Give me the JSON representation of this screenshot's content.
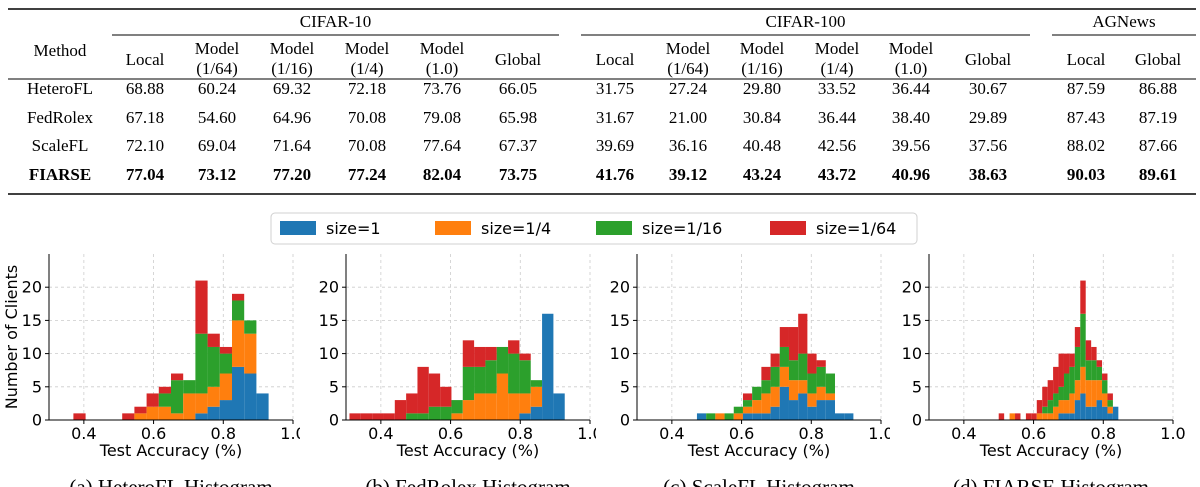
{
  "table": {
    "method_header": "Method",
    "groups": [
      "CIFAR-10",
      "CIFAR-100",
      "AGNews"
    ],
    "subheaders": [
      [
        "Local"
      ],
      [
        "Model",
        "(1/64)"
      ],
      [
        "Model",
        "(1/16)"
      ],
      [
        "Model",
        "(1/4)"
      ],
      [
        "Model",
        "(1.0)"
      ],
      [
        "Global"
      ],
      [
        "Local"
      ],
      [
        "Model",
        "(1/64)"
      ],
      [
        "Model",
        "(1/16)"
      ],
      [
        "Model",
        "(1/4)"
      ],
      [
        "Model",
        "(1.0)"
      ],
      [
        "Global"
      ],
      [
        "Local"
      ],
      [
        "Global"
      ]
    ],
    "rows": [
      {
        "method": "HeteroFL",
        "bold": false,
        "values": [
          "68.88",
          "60.24",
          "69.32",
          "72.18",
          "73.76",
          "66.05",
          "31.75",
          "27.24",
          "29.80",
          "33.52",
          "36.44",
          "30.67",
          "87.59",
          "86.88"
        ]
      },
      {
        "method": "FedRolex",
        "bold": false,
        "values": [
          "67.18",
          "54.60",
          "64.96",
          "70.08",
          "79.08",
          "65.98",
          "31.67",
          "21.00",
          "30.84",
          "36.44",
          "38.40",
          "29.89",
          "87.43",
          "87.19"
        ]
      },
      {
        "method": "ScaleFL",
        "bold": false,
        "values": [
          "72.10",
          "69.04",
          "71.64",
          "70.08",
          "77.64",
          "67.37",
          "39.69",
          "36.16",
          "40.48",
          "42.56",
          "39.56",
          "37.56",
          "88.02",
          "87.66"
        ]
      },
      {
        "method": "FIARSE",
        "bold": true,
        "values": [
          "77.04",
          "73.12",
          "77.20",
          "77.24",
          "82.04",
          "73.75",
          "41.76",
          "39.12",
          "43.24",
          "43.72",
          "40.96",
          "38.63",
          "90.03",
          "89.61"
        ]
      }
    ]
  },
  "legend": [
    {
      "label": "size=1",
      "color": "#1f77b4"
    },
    {
      "label": "size=1/4",
      "color": "#ff7f0e"
    },
    {
      "label": "size=1/16",
      "color": "#2ca02c"
    },
    {
      "label": "size=1/64",
      "color": "#d62728"
    }
  ],
  "chart_data": [
    {
      "type": "bar",
      "title": "",
      "caption": "(a) HeteroFL Histogram",
      "xlabel": "Test Accuracy (%)",
      "ylabel": "Number of Clients",
      "xlim": [
        0.3,
        1.0
      ],
      "ylim": [
        0,
        25
      ],
      "xticks": [
        "0.4",
        "0.6",
        "0.8",
        "1.0"
      ],
      "yticks": [
        "0",
        "5",
        "10",
        "15",
        "20"
      ],
      "bin_width": 0.035,
      "bins": [
        {
          "x0": 0.37,
          "values": [
            0,
            0,
            0,
            1
          ]
        },
        {
          "x0": 0.51,
          "values": [
            0,
            0,
            0,
            1
          ]
        },
        {
          "x0": 0.545,
          "values": [
            0,
            1,
            0,
            1
          ]
        },
        {
          "x0": 0.58,
          "values": [
            0,
            2,
            0,
            2
          ]
        },
        {
          "x0": 0.615,
          "values": [
            0,
            2,
            2,
            1
          ]
        },
        {
          "x0": 0.65,
          "values": [
            0,
            1,
            5,
            1
          ]
        },
        {
          "x0": 0.685,
          "values": [
            0,
            4,
            2,
            0
          ]
        },
        {
          "x0": 0.72,
          "values": [
            1,
            3,
            9,
            8
          ]
        },
        {
          "x0": 0.755,
          "values": [
            2,
            3,
            6,
            2
          ]
        },
        {
          "x0": 0.79,
          "values": [
            3,
            4,
            3,
            1
          ]
        },
        {
          "x0": 0.825,
          "values": [
            8,
            7,
            3,
            1
          ]
        },
        {
          "x0": 0.86,
          "values": [
            7,
            6,
            2,
            0
          ]
        },
        {
          "x0": 0.895,
          "values": [
            4,
            0,
            0,
            0
          ]
        }
      ]
    },
    {
      "type": "bar",
      "title": "",
      "caption": "(b) FedRolex Histogram",
      "xlabel": "Test Accuracy (%)",
      "ylabel": "",
      "xlim": [
        0.3,
        1.0
      ],
      "ylim": [
        0,
        25
      ],
      "xticks": [
        "0.4",
        "0.6",
        "0.8",
        "1.0"
      ],
      "yticks": [
        "0",
        "5",
        "10",
        "15",
        "20"
      ],
      "bin_width": 0.0325,
      "bins": [
        {
          "x0": 0.31,
          "values": [
            0,
            0,
            0,
            1
          ]
        },
        {
          "x0": 0.3425,
          "values": [
            0,
            0,
            0,
            1
          ]
        },
        {
          "x0": 0.375,
          "values": [
            0,
            0,
            0,
            1
          ]
        },
        {
          "x0": 0.4075,
          "values": [
            0,
            0,
            0,
            1
          ]
        },
        {
          "x0": 0.44,
          "values": [
            0,
            0,
            0,
            3
          ]
        },
        {
          "x0": 0.4725,
          "values": [
            0,
            0,
            1,
            3
          ]
        },
        {
          "x0": 0.505,
          "values": [
            0,
            0,
            1,
            7
          ]
        },
        {
          "x0": 0.5375,
          "values": [
            0,
            0,
            2,
            5
          ]
        },
        {
          "x0": 0.57,
          "values": [
            0,
            0,
            2,
            3
          ]
        },
        {
          "x0": 0.6025,
          "values": [
            0,
            1,
            2,
            0
          ]
        },
        {
          "x0": 0.635,
          "values": [
            0,
            3,
            5,
            4
          ]
        },
        {
          "x0": 0.6675,
          "values": [
            0,
            4,
            4,
            3
          ]
        },
        {
          "x0": 0.7,
          "values": [
            0,
            4,
            5,
            2
          ]
        },
        {
          "x0": 0.7325,
          "values": [
            0,
            7,
            4,
            0
          ]
        },
        {
          "x0": 0.765,
          "values": [
            0,
            4,
            6,
            2
          ]
        },
        {
          "x0": 0.7975,
          "values": [
            1,
            3,
            5,
            1
          ]
        },
        {
          "x0": 0.83,
          "values": [
            2,
            3,
            1,
            0
          ]
        },
        {
          "x0": 0.8625,
          "values": [
            16,
            0,
            0,
            0
          ]
        },
        {
          "x0": 0.895,
          "values": [
            4,
            0,
            0,
            0
          ]
        }
      ]
    },
    {
      "type": "bar",
      "title": "",
      "caption": "(c) ScaleFL Histogram",
      "xlabel": "Test Accuracy (%)",
      "ylabel": "",
      "xlim": [
        0.3,
        1.0
      ],
      "ylim": [
        0,
        25
      ],
      "xticks": [
        "0.4",
        "0.6",
        "0.8",
        "1.0"
      ],
      "yticks": [
        "0",
        "5",
        "10",
        "15",
        "20"
      ],
      "bin_width": 0.0264,
      "bins": [
        {
          "x0": 0.472,
          "values": [
            1,
            0,
            0,
            0
          ]
        },
        {
          "x0": 0.4984,
          "values": [
            0,
            0,
            1,
            0
          ]
        },
        {
          "x0": 0.5248,
          "values": [
            0,
            1,
            0,
            0
          ]
        },
        {
          "x0": 0.5512,
          "values": [
            0,
            0,
            1,
            0
          ]
        },
        {
          "x0": 0.5776,
          "values": [
            0,
            1,
            1,
            0
          ]
        },
        {
          "x0": 0.604,
          "values": [
            1,
            1,
            1,
            1
          ]
        },
        {
          "x0": 0.6304,
          "values": [
            1,
            2,
            2,
            0
          ]
        },
        {
          "x0": 0.6568,
          "values": [
            1,
            3,
            2,
            2
          ]
        },
        {
          "x0": 0.6832,
          "values": [
            2,
            3,
            3,
            2
          ]
        },
        {
          "x0": 0.7096,
          "values": [
            5,
            3,
            3,
            3
          ]
        },
        {
          "x0": 0.736,
          "values": [
            3,
            3,
            3,
            5
          ]
        },
        {
          "x0": 0.7624,
          "values": [
            4,
            2,
            4,
            6
          ]
        },
        {
          "x0": 0.7888,
          "values": [
            2,
            2,
            3,
            3
          ]
        },
        {
          "x0": 0.8152,
          "values": [
            3,
            2,
            3,
            1
          ]
        },
        {
          "x0": 0.8416,
          "values": [
            3,
            1,
            3,
            0
          ]
        },
        {
          "x0": 0.868,
          "values": [
            1,
            0,
            0,
            0
          ]
        },
        {
          "x0": 0.8944,
          "values": [
            1,
            0,
            0,
            0
          ]
        }
      ]
    },
    {
      "type": "bar",
      "title": "",
      "caption": "(d) FIARSE Histogram",
      "xlabel": "Test Accuracy (%)",
      "ylabel": "",
      "xlim": [
        0.3,
        1.0
      ],
      "ylim": [
        0,
        25
      ],
      "xticks": [
        "0.4",
        "0.6",
        "0.8",
        "1.0"
      ],
      "yticks": [
        "0",
        "5",
        "10",
        "15",
        "20"
      ],
      "bin_width": 0.0156,
      "bins": [
        {
          "x0": 0.5,
          "values": [
            0,
            0,
            0,
            1
          ]
        },
        {
          "x0": 0.5156,
          "values": [
            0,
            0,
            0,
            0
          ]
        },
        {
          "x0": 0.5312,
          "values": [
            0,
            1,
            0,
            0
          ]
        },
        {
          "x0": 0.5468,
          "values": [
            0,
            0,
            0,
            1
          ]
        },
        {
          "x0": 0.5624,
          "values": [
            0,
            0,
            0,
            0
          ]
        },
        {
          "x0": 0.578,
          "values": [
            0,
            0,
            0,
            1
          ]
        },
        {
          "x0": 0.5936,
          "values": [
            0,
            0,
            0,
            1
          ]
        },
        {
          "x0": 0.6092,
          "values": [
            0,
            1,
            0,
            2
          ]
        },
        {
          "x0": 0.6248,
          "values": [
            0,
            1,
            1,
            3
          ]
        },
        {
          "x0": 0.6404,
          "values": [
            0,
            1,
            2,
            3
          ]
        },
        {
          "x0": 0.656,
          "values": [
            0,
            2,
            2,
            4
          ]
        },
        {
          "x0": 0.6716,
          "values": [
            1,
            2,
            2,
            5
          ]
        },
        {
          "x0": 0.6872,
          "values": [
            1,
            2,
            4,
            3
          ]
        },
        {
          "x0": 0.7028,
          "values": [
            1,
            3,
            4,
            2
          ]
        },
        {
          "x0": 0.7184,
          "values": [
            3,
            3,
            5,
            3
          ]
        },
        {
          "x0": 0.734,
          "values": [
            4,
            4,
            8,
            5
          ]
        },
        {
          "x0": 0.7496,
          "values": [
            2,
            4,
            3,
            3
          ]
        },
        {
          "x0": 0.7652,
          "values": [
            2,
            4,
            3,
            2
          ]
        },
        {
          "x0": 0.7808,
          "values": [
            3,
            3,
            2,
            1
          ]
        },
        {
          "x0": 0.7964,
          "values": [
            2,
            2,
            2,
            1
          ]
        },
        {
          "x0": 0.812,
          "values": [
            1,
            1,
            1,
            1
          ]
        },
        {
          "x0": 0.8276,
          "values": [
            2,
            0,
            0,
            0
          ]
        }
      ]
    }
  ]
}
